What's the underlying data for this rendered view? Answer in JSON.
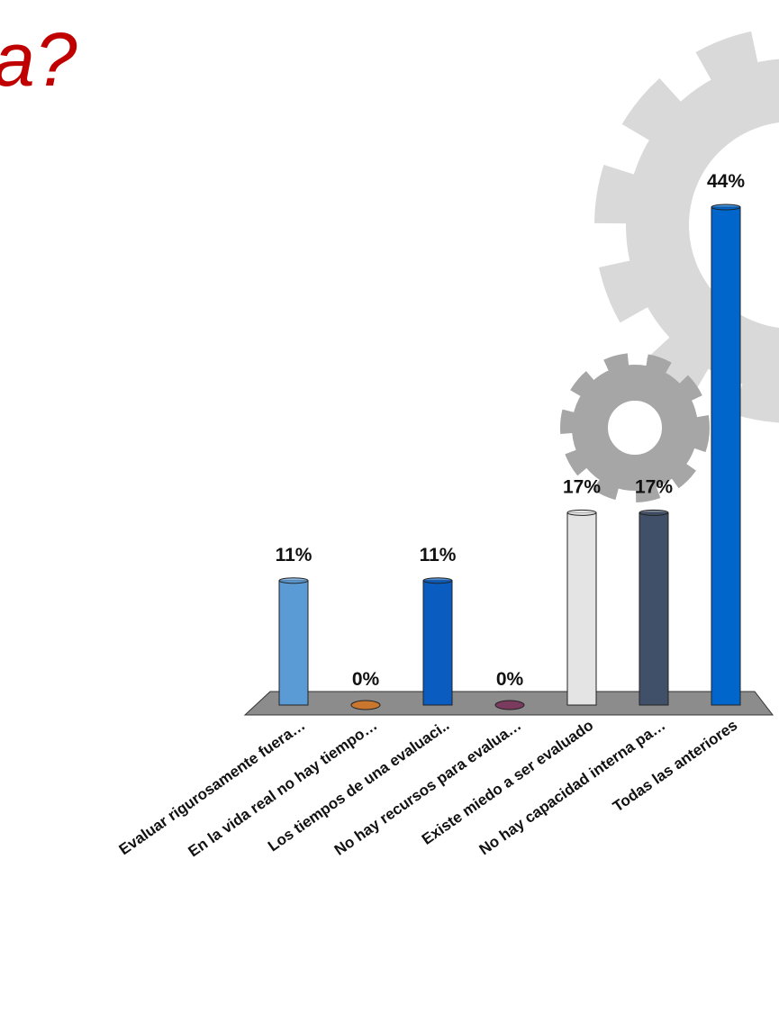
{
  "chart_data": {
    "type": "bar",
    "title": "a?",
    "categories": [
      "Evaluar rigurosamente fuera…",
      "En la vida real no hay tiempo…",
      "Los tiempos de una evaluaci..",
      "No hay recursos para evalua…",
      "Existe miedo a ser evaluado",
      "No hay capacidad interna pa…",
      "Todas las anteriores"
    ],
    "values": [
      11,
      0,
      11,
      0,
      17,
      17,
      44
    ],
    "value_labels": [
      "11%",
      "0%",
      "11%",
      "0%",
      "17%",
      "17%",
      "44%"
    ],
    "colors": [
      "#5b9bd5",
      "#c9762f",
      "#0b5cc0",
      "#7b3b5e",
      "#e4e4e4",
      "#405068",
      "#0066cc"
    ]
  }
}
